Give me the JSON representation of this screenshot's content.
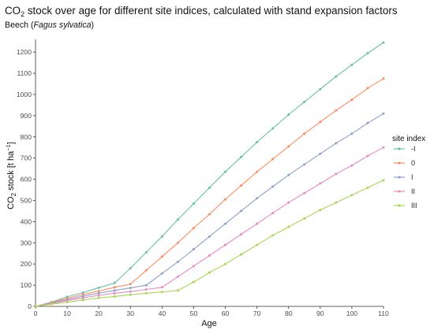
{
  "chart_data": {
    "type": "line",
    "title_prefix": "CO",
    "title_sub": "2",
    "title_suffix": " stock over age for different site indices, calculated with stand expansion factors",
    "subtitle_prefix": "Beech (",
    "subtitle_italic": "Fagus sylvatica",
    "subtitle_suffix": ")",
    "xlabel": "Age",
    "ylabel_prefix": "CO",
    "ylabel_sub": "2",
    "ylabel_suffix": " stock [t ha",
    "ylabel_sup": "−1",
    "ylabel_close": "]",
    "xlim": [
      0,
      110
    ],
    "ylim": [
      0,
      1260
    ],
    "x_ticks": [
      0,
      10,
      20,
      30,
      40,
      50,
      60,
      70,
      80,
      90,
      100,
      110
    ],
    "y_ticks": [
      0,
      100,
      200,
      300,
      400,
      500,
      600,
      700,
      800,
      900,
      1000,
      1100,
      1200
    ],
    "grid": false,
    "legend_position": "right",
    "legend_title": "site index",
    "series": [
      {
        "name": "-I",
        "color": "#66c2a5",
        "x": [
          0,
          5,
          10,
          15,
          20,
          25,
          30,
          35,
          40,
          45,
          50,
          55,
          60,
          65,
          70,
          75,
          80,
          85,
          90,
          95,
          100,
          105,
          110
        ],
        "y": [
          0,
          20,
          45,
          65,
          88,
          110,
          180,
          255,
          330,
          410,
          485,
          560,
          635,
          705,
          775,
          840,
          905,
          965,
          1025,
          1085,
          1140,
          1195,
          1245
        ]
      },
      {
        "name": "0",
        "color": "#fc8d62",
        "x": [
          0,
          5,
          10,
          15,
          20,
          25,
          30,
          35,
          40,
          45,
          50,
          55,
          60,
          65,
          70,
          75,
          80,
          85,
          90,
          95,
          100,
          105,
          110
        ],
        "y": [
          0,
          18,
          38,
          56,
          72,
          90,
          105,
          170,
          235,
          300,
          370,
          435,
          505,
          570,
          635,
          695,
          755,
          815,
          870,
          925,
          975,
          1030,
          1075
        ]
      },
      {
        "name": "I",
        "color": "#8da0cb",
        "x": [
          0,
          5,
          10,
          15,
          20,
          25,
          30,
          35,
          40,
          45,
          50,
          55,
          60,
          65,
          70,
          75,
          80,
          85,
          90,
          95,
          100,
          105,
          110
        ],
        "y": [
          0,
          15,
          32,
          48,
          62,
          75,
          87,
          100,
          155,
          210,
          270,
          330,
          390,
          450,
          510,
          565,
          620,
          670,
          720,
          770,
          815,
          865,
          910
        ]
      },
      {
        "name": "II",
        "color": "#e78ac3",
        "x": [
          0,
          5,
          10,
          15,
          20,
          25,
          30,
          35,
          40,
          45,
          50,
          55,
          60,
          65,
          70,
          75,
          80,
          85,
          90,
          95,
          100,
          105,
          110
        ],
        "y": [
          0,
          13,
          27,
          40,
          52,
          62,
          70,
          80,
          90,
          140,
          190,
          240,
          290,
          340,
          390,
          440,
          490,
          535,
          580,
          625,
          665,
          710,
          750
        ]
      },
      {
        "name": "III",
        "color": "#a6d854",
        "x": [
          0,
          5,
          10,
          15,
          20,
          25,
          30,
          35,
          40,
          45,
          50,
          55,
          60,
          65,
          70,
          75,
          80,
          85,
          90,
          95,
          100,
          105,
          110
        ],
        "y": [
          0,
          10,
          20,
          30,
          40,
          47,
          55,
          62,
          68,
          75,
          115,
          160,
          200,
          245,
          290,
          335,
          375,
          415,
          455,
          490,
          525,
          560,
          595
        ]
      }
    ]
  }
}
